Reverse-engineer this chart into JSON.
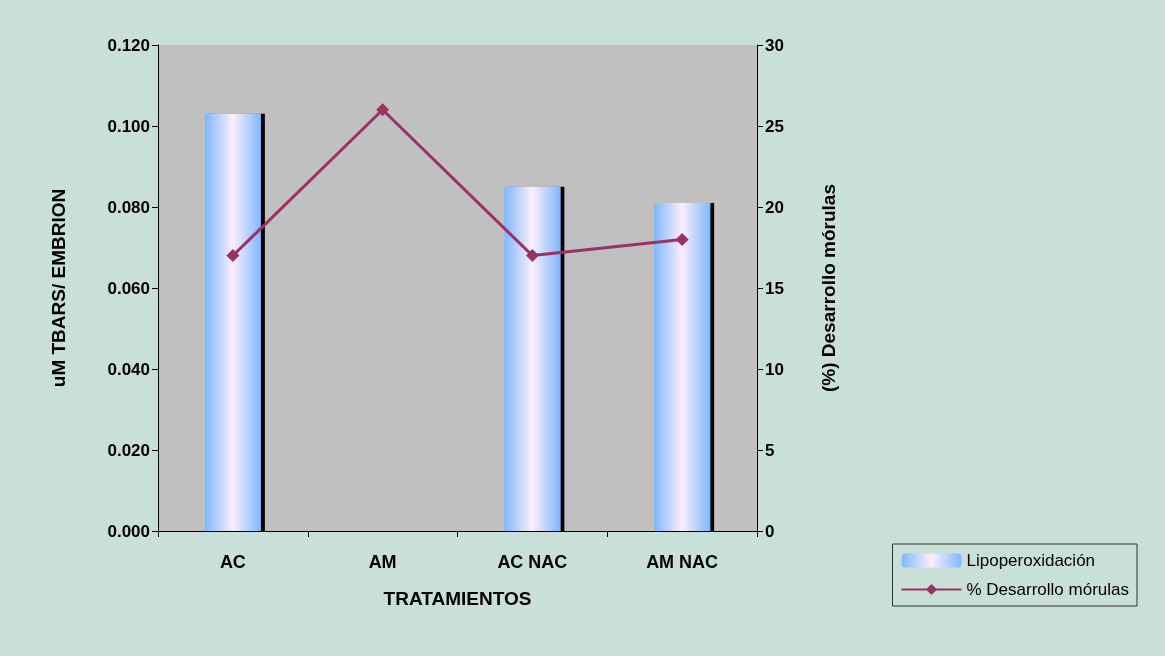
{
  "chart_data": {
    "type": "bar",
    "xlabel": "TRATAMIENTOS",
    "ylabel": "uM TBARS/ EMBRION",
    "y2label": "(%) Desarrollo mórulas",
    "categories": [
      "AC",
      "AM",
      "AC NAC",
      "AM NAC"
    ],
    "series": [
      {
        "name": "Lipoperoxidación",
        "color": "#7fb8ff",
        "values": [
          0.103,
          null,
          0.085,
          0.081
        ]
      },
      {
        "name": "% Desarrollo mórulas",
        "type": "line",
        "axis": "y2",
        "color": "#993366",
        "values": [
          17,
          26,
          17,
          18
        ]
      }
    ],
    "ylim": [
      0,
      0.12
    ],
    "yticks": [
      {
        "value": 0,
        "label": "0.000"
      },
      {
        "value": 0.02,
        "label": "0.020"
      },
      {
        "value": 0.04,
        "label": "0.040"
      },
      {
        "value": 0.06,
        "label": "0.060"
      },
      {
        "value": 0.08,
        "label": "0.080"
      },
      {
        "value": 0.1,
        "label": "0.100"
      },
      {
        "value": 0.12,
        "label": "0.120"
      }
    ],
    "y2lim": [
      0,
      30
    ],
    "y2ticks": [
      0,
      5,
      10,
      15,
      20,
      25,
      30
    ],
    "marker": "diamond",
    "legend": "bottom right",
    "grid": false
  }
}
